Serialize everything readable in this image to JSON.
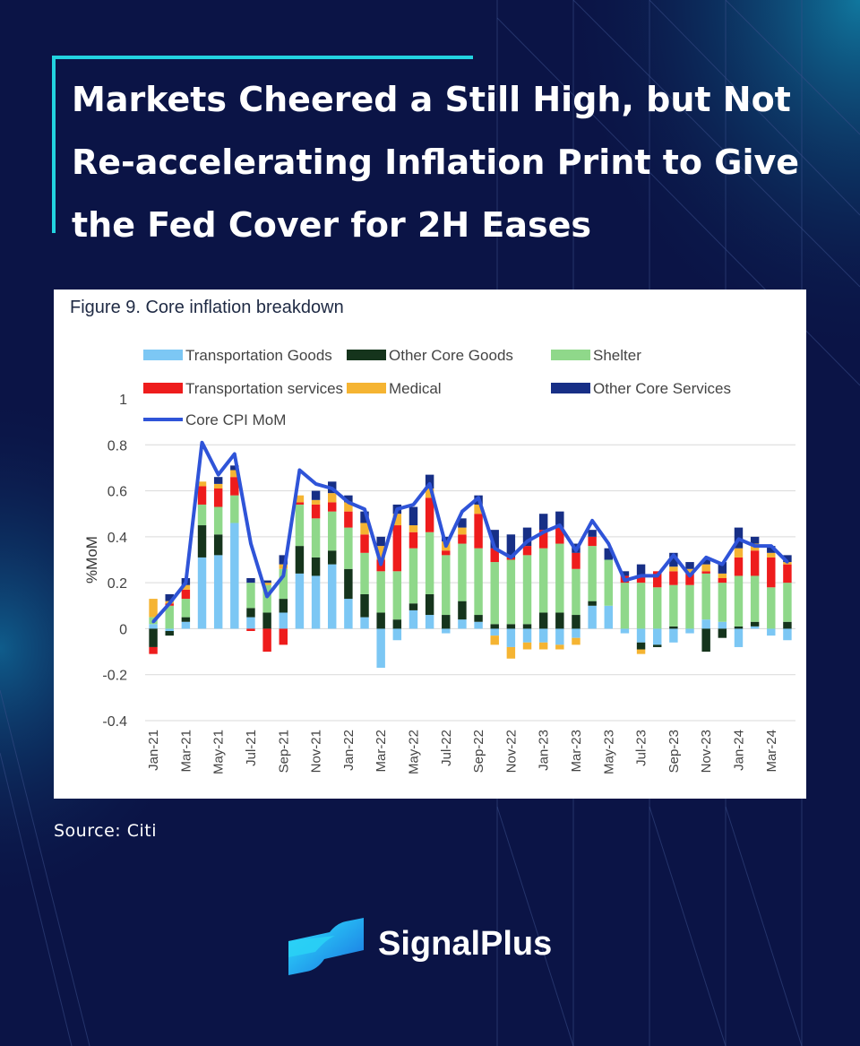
{
  "headline": "Markets Cheered a Still High, but Not Re-accelerating Inflation Print to Give the Fed Cover for 2H Eases",
  "source": "Source: Citi",
  "brand": {
    "name": "SignalPlus",
    "logo_icon": "signalplus-logo-icon"
  },
  "colors": {
    "background": "#0b1446",
    "accent": "#22d3e0"
  },
  "chart_data": {
    "type": "bar",
    "title": "Figure 9. Core inflation breakdown",
    "ylabel": "%MoM",
    "xlabel": "",
    "ylim": [
      -0.4,
      1
    ],
    "yticks": [
      1,
      0.8,
      0.6,
      0.4,
      0.2,
      0,
      -0.2,
      -0.4
    ],
    "yticklabels": [
      "1",
      "0.8",
      "0.6",
      "0.4",
      "0.2",
      "0",
      "-0.2",
      "-0.4"
    ],
    "stacked": true,
    "grid": true,
    "categories": [
      "Jan-21",
      "Feb-21",
      "Mar-21",
      "Apr-21",
      "May-21",
      "Jun-21",
      "Jul-21",
      "Aug-21",
      "Sep-21",
      "Oct-21",
      "Nov-21",
      "Dec-21",
      "Jan-22",
      "Feb-22",
      "Mar-22",
      "Apr-22",
      "May-22",
      "Jun-22",
      "Jul-22",
      "Aug-22",
      "Sep-22",
      "Oct-22",
      "Nov-22",
      "Dec-22",
      "Jan-23",
      "Feb-23",
      "Mar-23",
      "Apr-23",
      "May-23",
      "Jun-23",
      "Jul-23",
      "Aug-23",
      "Sep-23",
      "Oct-23",
      "Nov-23",
      "Dec-23",
      "Jan-24",
      "Feb-24",
      "Mar-24",
      "Apr-24"
    ],
    "xticklabels": [
      "Jan-21",
      "Mar-21",
      "May-21",
      "Jul-21",
      "Sep-21",
      "Nov-21",
      "Jan-22",
      "Mar-22",
      "May-22",
      "Jul-22",
      "Sep-22",
      "Nov-22",
      "Jan-23",
      "Mar-23",
      "May-23",
      "Jul-23",
      "Sep-23",
      "Nov-23",
      "Jan-24",
      "Mar-24"
    ],
    "series": [
      {
        "name": "Transportation Goods",
        "color": "#7cc7f4",
        "values": [
          0.02,
          -0.01,
          0.03,
          0.31,
          0.32,
          0.46,
          0.05,
          0.0,
          0.07,
          0.24,
          0.23,
          0.28,
          0.13,
          0.05,
          -0.17,
          -0.05,
          0.08,
          0.06,
          -0.02,
          0.04,
          0.03,
          -0.03,
          -0.08,
          -0.06,
          -0.06,
          -0.07,
          -0.04,
          0.1,
          0.1,
          -0.02,
          -0.06,
          -0.07,
          -0.06,
          -0.02,
          0.04,
          0.03,
          -0.08,
          0.01,
          -0.03,
          -0.05
        ]
      },
      {
        "name": "Other Core Goods",
        "color": "#15341c",
        "values": [
          -0.08,
          -0.02,
          0.02,
          0.14,
          0.09,
          0.0,
          0.04,
          0.07,
          0.06,
          0.12,
          0.08,
          0.06,
          0.13,
          0.1,
          0.07,
          0.04,
          0.03,
          0.09,
          0.06,
          0.08,
          0.03,
          0.02,
          0.02,
          0.02,
          0.07,
          0.07,
          0.06,
          0.02,
          0.0,
          0.0,
          -0.03,
          -0.01,
          0.01,
          0.0,
          -0.1,
          -0.04,
          0.01,
          0.02,
          0.0,
          0.03
        ]
      },
      {
        "name": "Shelter",
        "color": "#8fd88a",
        "values": [
          0.03,
          0.1,
          0.08,
          0.09,
          0.12,
          0.12,
          0.11,
          0.12,
          0.13,
          0.18,
          0.17,
          0.17,
          0.18,
          0.18,
          0.18,
          0.21,
          0.24,
          0.27,
          0.26,
          0.25,
          0.29,
          0.27,
          0.28,
          0.3,
          0.28,
          0.3,
          0.2,
          0.24,
          0.2,
          0.2,
          0.2,
          0.18,
          0.18,
          0.19,
          0.2,
          0.17,
          0.22,
          0.2,
          0.18,
          0.17
        ]
      },
      {
        "name": "Transportation services",
        "color": "#ee1c1c",
        "values": [
          -0.03,
          0.01,
          0.04,
          0.08,
          0.08,
          0.08,
          -0.01,
          -0.1,
          -0.07,
          0.01,
          0.06,
          0.04,
          0.07,
          0.08,
          0.05,
          0.2,
          0.07,
          0.15,
          0.02,
          0.04,
          0.15,
          0.06,
          0.01,
          0.04,
          0.08,
          0.07,
          0.07,
          0.04,
          0.0,
          0.03,
          0.03,
          0.07,
          0.06,
          0.05,
          0.01,
          0.02,
          0.08,
          0.11,
          0.13,
          0.08
        ]
      },
      {
        "name": "Medical",
        "color": "#f5b432",
        "values": [
          0.08,
          0.01,
          0.02,
          0.02,
          0.02,
          0.03,
          0.0,
          0.01,
          0.02,
          0.03,
          0.02,
          0.04,
          0.04,
          0.05,
          0.06,
          0.05,
          0.03,
          0.04,
          0.04,
          0.03,
          0.04,
          -0.04,
          -0.05,
          -0.03,
          -0.03,
          -0.02,
          -0.03,
          0.0,
          0.0,
          0.0,
          -0.02,
          0.0,
          0.02,
          0.02,
          0.03,
          0.02,
          0.04,
          0.03,
          0.02,
          0.01
        ]
      },
      {
        "name": "Other Core Services",
        "color": "#172f86",
        "values": [
          0.0,
          0.03,
          0.03,
          0.0,
          0.03,
          0.02,
          0.02,
          0.01,
          0.04,
          0.0,
          0.04,
          0.05,
          0.03,
          0.05,
          0.04,
          0.04,
          0.08,
          0.06,
          0.02,
          0.04,
          0.04,
          0.08,
          0.1,
          0.08,
          0.07,
          0.07,
          0.04,
          0.03,
          0.05,
          0.02,
          0.05,
          0.0,
          0.06,
          0.03,
          0.02,
          0.05,
          0.09,
          0.03,
          0.03,
          0.03
        ]
      }
    ],
    "line": {
      "name": "Core CPI MoM",
      "color": "#2f54d8",
      "values": [
        0.03,
        0.11,
        0.2,
        0.81,
        0.67,
        0.76,
        0.37,
        0.14,
        0.23,
        0.69,
        0.63,
        0.61,
        0.55,
        0.52,
        0.28,
        0.52,
        0.54,
        0.63,
        0.36,
        0.51,
        0.57,
        0.35,
        0.31,
        0.38,
        0.42,
        0.45,
        0.34,
        0.47,
        0.37,
        0.21,
        0.23,
        0.23,
        0.32,
        0.23,
        0.31,
        0.28,
        0.39,
        0.36,
        0.36,
        0.29
      ]
    }
  }
}
